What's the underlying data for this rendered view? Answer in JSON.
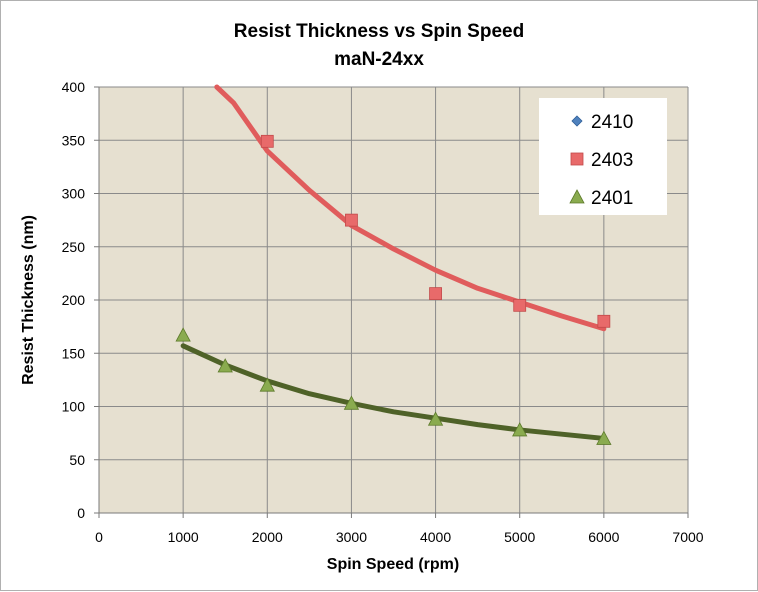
{
  "chart_data": {
    "type": "scatter",
    "title": "Resist Thickness vs Spin Speed",
    "subtitle": "maN-24xx",
    "xlabel": "Spin Speed (rpm)",
    "ylabel": "Resist Thickness (nm)",
    "xlim": [
      0,
      7000
    ],
    "ylim": [
      0,
      400
    ],
    "xticks": [
      0,
      1000,
      2000,
      3000,
      4000,
      5000,
      6000,
      7000
    ],
    "yticks": [
      0,
      50,
      100,
      150,
      200,
      250,
      300,
      350,
      400
    ],
    "grid": true,
    "legend_position": "top-right",
    "plot_background": "#e6e0d0",
    "series": [
      {
        "name": "2410",
        "marker": "diamond",
        "color": "#4f81bd",
        "x": [],
        "y": []
      },
      {
        "name": "2403",
        "marker": "square",
        "color": "#e86a6a",
        "trend_color": "#e05c5c",
        "x": [
          2000,
          3000,
          4000,
          5000,
          6000
        ],
        "y": [
          349,
          275,
          206,
          195,
          180
        ],
        "trend": {
          "x": [
            1400,
            1600,
            2000,
            2500,
            3000,
            3500,
            4000,
            4500,
            5000,
            5500,
            6000
          ],
          "y": [
            400,
            385,
            340,
            303,
            270,
            248,
            228,
            211,
            198,
            185,
            173
          ]
        }
      },
      {
        "name": "2401",
        "marker": "triangle",
        "color": "#8aab4f",
        "trend_color": "#4f6228",
        "x": [
          1000,
          1500,
          2000,
          3000,
          4000,
          5000,
          6000
        ],
        "y": [
          167,
          138,
          120,
          103,
          88,
          78,
          70
        ],
        "trend": {
          "x": [
            1000,
            1500,
            2000,
            2500,
            3000,
            3500,
            4000,
            4500,
            5000,
            5500,
            6000
          ],
          "y": [
            157,
            139,
            124,
            112,
            103,
            95,
            89,
            83,
            78,
            74,
            70
          ]
        }
      }
    ]
  }
}
